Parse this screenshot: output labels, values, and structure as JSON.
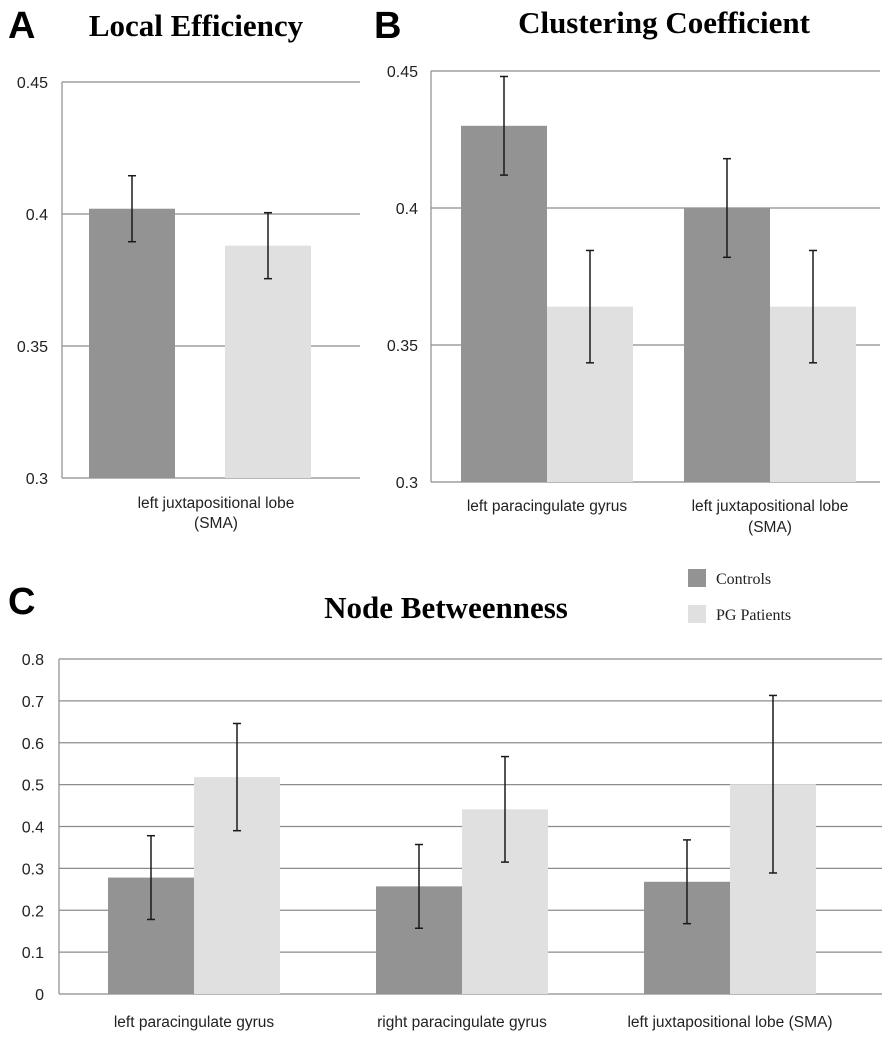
{
  "colors": {
    "controls": "#939393",
    "patients": "#e0e0e0",
    "grid": "#8c8c8c",
    "error": "#1a1a1a"
  },
  "legend": {
    "controls_label": "Controls",
    "patients_label": "PG Patients"
  },
  "chart_data": [
    {
      "panel": "A",
      "type": "bar",
      "title": "Local Efficiency",
      "ylim": [
        0.3,
        0.45
      ],
      "yticks": [
        "0.3",
        "0.35",
        "0.4",
        "0.45"
      ],
      "yvals": [
        0.3,
        0.35,
        0.4,
        0.45
      ],
      "categories": [
        [
          "left juxtapositional lobe",
          "(SMA)"
        ]
      ],
      "series": [
        {
          "name": "Controls",
          "values": [
            0.402
          ],
          "errors": [
            0.0125
          ]
        },
        {
          "name": "PG Patients",
          "values": [
            0.388
          ],
          "errors": [
            0.0125
          ]
        }
      ]
    },
    {
      "panel": "B",
      "type": "bar",
      "title": "Clustering Coefficient",
      "ylim": [
        0.3,
        0.45
      ],
      "yticks": [
        "0.3",
        "0.35",
        "0.4",
        "0.45"
      ],
      "yvals": [
        0.3,
        0.35,
        0.4,
        0.45
      ],
      "categories": [
        [
          "left paracingulate gyrus"
        ],
        [
          "left juxtapositional lobe",
          "(SMA)"
        ]
      ],
      "series": [
        {
          "name": "Controls",
          "values": [
            0.43,
            0.4
          ],
          "errors": [
            0.018,
            0.018
          ]
        },
        {
          "name": "PG Patients",
          "values": [
            0.364,
            0.364
          ],
          "errors": [
            0.0205,
            0.0205
          ]
        }
      ]
    },
    {
      "panel": "C",
      "type": "bar",
      "title": "Node Betweenness",
      "ylim": [
        0,
        0.8
      ],
      "yticks": [
        "0",
        "0.1",
        "0.2",
        "0.3",
        "0.4",
        "0.5",
        "0.6",
        "0.7",
        "0.8"
      ],
      "yvals": [
        0,
        0.1,
        0.2,
        0.3,
        0.4,
        0.5,
        0.6,
        0.7,
        0.8
      ],
      "categories": [
        [
          "left paracingulate gyrus"
        ],
        [
          "right paracingulate gyrus"
        ],
        [
          "left juxtapositional lobe (SMA)"
        ]
      ],
      "series": [
        {
          "name": "Controls",
          "values": [
            0.278,
            0.257,
            0.268
          ],
          "errors": [
            0.1,
            0.1,
            0.1
          ]
        },
        {
          "name": "PG Patients",
          "values": [
            0.518,
            0.441,
            0.501
          ],
          "errors": [
            0.128,
            0.126,
            0.212
          ]
        }
      ]
    }
  ]
}
